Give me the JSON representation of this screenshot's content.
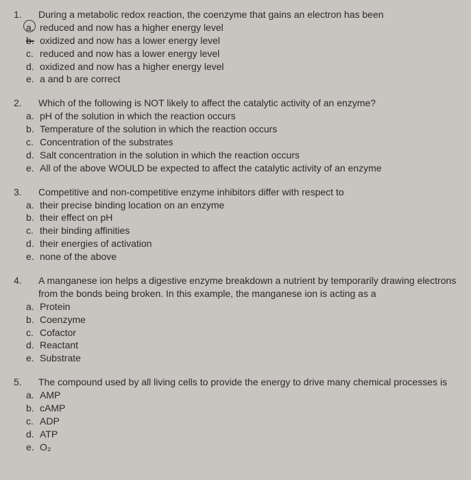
{
  "questions": [
    {
      "num": "1.",
      "stem": "During a metabolic redox reaction, the coenzyme that gains an electron has been",
      "choices": [
        {
          "letter": "a.",
          "text": "reduced and now has a higher energy level",
          "circled": true
        },
        {
          "letter": "b.",
          "text": "oxidized and now has a lower energy level",
          "struck": true
        },
        {
          "letter": "c.",
          "text": "reduced and now has a lower energy level"
        },
        {
          "letter": "d.",
          "text": "oxidized and now has a higher energy level"
        },
        {
          "letter": "e.",
          "text": "a and b are correct"
        }
      ]
    },
    {
      "num": "2.",
      "stem": "Which of the following is NOT likely to affect the catalytic activity of an enzyme?",
      "choices": [
        {
          "letter": "a.",
          "text": "pH of the solution in which the reaction occurs"
        },
        {
          "letter": "b.",
          "text": "Temperature of the solution in which the reaction occurs"
        },
        {
          "letter": "c.",
          "text": "Concentration of the substrates"
        },
        {
          "letter": "d.",
          "text": "Salt concentration in the solution in which the reaction occurs"
        },
        {
          "letter": "e.",
          "text": "All of the above WOULD be expected to affect the catalytic activity of an enzyme"
        }
      ]
    },
    {
      "num": "3.",
      "stem": "Competitive and non-competitive enzyme inhibitors differ with respect to",
      "choices": [
        {
          "letter": "a.",
          "text": "their precise binding location on an enzyme"
        },
        {
          "letter": "b.",
          "text": "their effect on pH"
        },
        {
          "letter": "c.",
          "text": "their binding affinities"
        },
        {
          "letter": "d.",
          "text": "their energies of activation"
        },
        {
          "letter": "e.",
          "text": "none of the above"
        }
      ]
    },
    {
      "num": "4.",
      "stem": "A manganese ion helps a digestive enzyme breakdown a nutrient by temporarily drawing electrons from the bonds being broken.  In this example, the manganese ion is acting as a",
      "choices": [
        {
          "letter": "a.",
          "text": "Protein"
        },
        {
          "letter": "b.",
          "text": "Coenzyme"
        },
        {
          "letter": "c.",
          "text": "Cofactor"
        },
        {
          "letter": "d.",
          "text": "Reactant"
        },
        {
          "letter": "e.",
          "text": "Substrate"
        }
      ]
    },
    {
      "num": "5.",
      "stem": "The compound used by all living cells to provide the energy to drive many chemical processes is",
      "choices": [
        {
          "letter": "a.",
          "text": "AMP"
        },
        {
          "letter": "b.",
          "text": "cAMP"
        },
        {
          "letter": "c.",
          "text": "ADP"
        },
        {
          "letter": "d.",
          "text": "ATP"
        },
        {
          "letter": "e.",
          "text": "O₂"
        }
      ]
    }
  ]
}
